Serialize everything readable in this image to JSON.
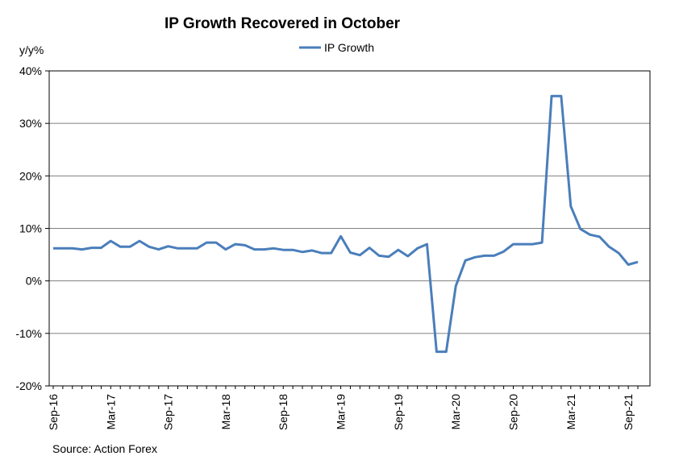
{
  "chart_data": {
    "type": "line",
    "title": "IP Growth Recovered in October",
    "ylabel": "y/y%",
    "source": "Source: Action Forex",
    "ylim": [
      -20,
      40
    ],
    "yticks": [
      40,
      30,
      20,
      10,
      0,
      -10,
      -20
    ],
    "ytick_labels": [
      "40%",
      "30%",
      "20%",
      "10%",
      "0%",
      "-10%",
      "-20%"
    ],
    "xtick_labels": [
      "Sep-16",
      "Mar-17",
      "Sep-17",
      "Mar-18",
      "Sep-18",
      "Mar-19",
      "Sep-19",
      "Mar-20",
      "Sep-20",
      "Mar-21",
      "Sep-21"
    ],
    "xtick_index": [
      0,
      6,
      12,
      18,
      24,
      30,
      36,
      42,
      48,
      54,
      60
    ],
    "legend": "IP Growth",
    "color": "#4a7ebb",
    "series": [
      {
        "name": "IP Growth",
        "values": [
          6.2,
          6.2,
          6.2,
          6.0,
          6.3,
          6.3,
          7.6,
          6.5,
          6.5,
          7.6,
          6.5,
          6.0,
          6.6,
          6.2,
          6.2,
          6.2,
          7.3,
          7.3,
          6.0,
          7.0,
          6.8,
          6.0,
          6.0,
          6.2,
          5.9,
          5.9,
          5.5,
          5.8,
          5.3,
          5.3,
          8.5,
          5.4,
          4.9,
          6.3,
          4.8,
          4.6,
          5.9,
          4.7,
          6.2,
          7.0,
          -13.5,
          -13.5,
          -1.0,
          3.9,
          4.5,
          4.8,
          4.8,
          5.6,
          7.0,
          7.0,
          7.0,
          7.3,
          35.2,
          35.2,
          14.2,
          9.9,
          8.8,
          8.4,
          6.5,
          5.3,
          3.1,
          3.6
        ]
      }
    ]
  }
}
